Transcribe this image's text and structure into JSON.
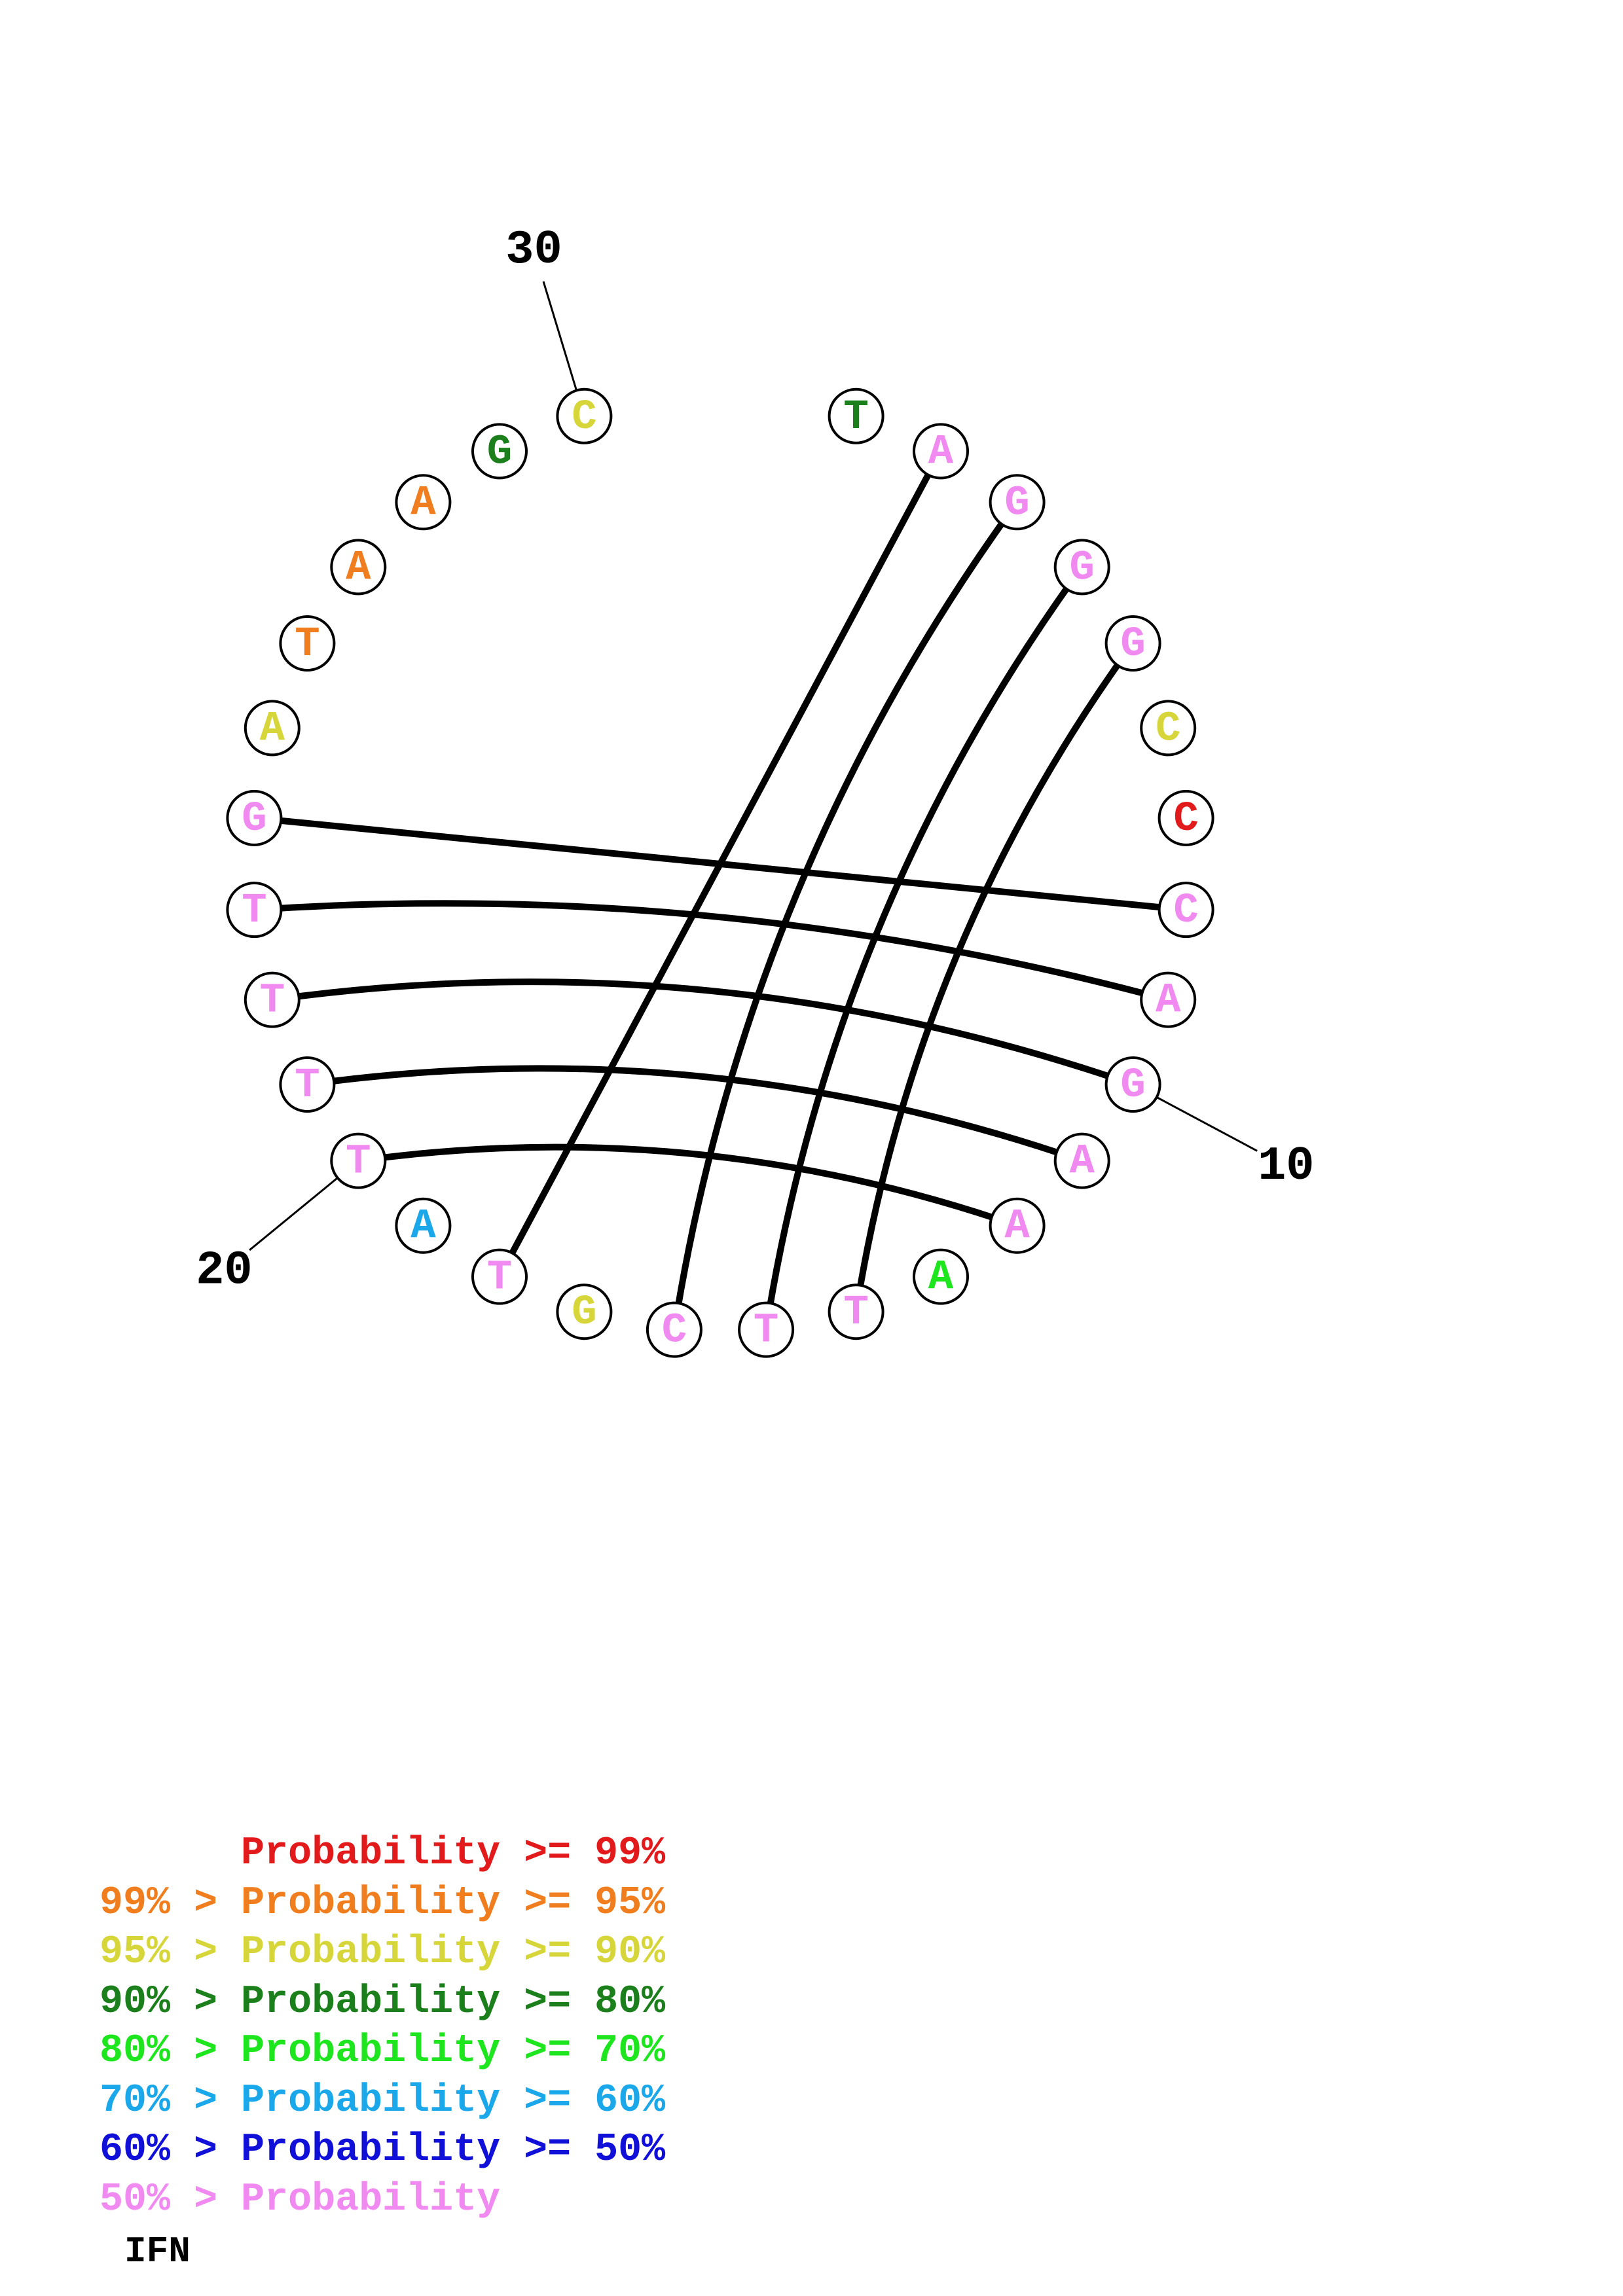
{
  "sequence_name": "IFN",
  "colors": {
    "p99": "#e31a1c",
    "p95": "#f07e1e",
    "p90": "#d6d63a",
    "p80": "#1b7f1b",
    "p70": "#1ee61e",
    "p60": "#1aa8ea",
    "p50": "#1010d8",
    "low": "#f08af0"
  },
  "nucleotides": [
    {
      "i": 1,
      "base": "T",
      "prob": "p80"
    },
    {
      "i": 2,
      "base": "A",
      "prob": "low"
    },
    {
      "i": 3,
      "base": "G",
      "prob": "low"
    },
    {
      "i": 4,
      "base": "G",
      "prob": "low"
    },
    {
      "i": 5,
      "base": "G",
      "prob": "low"
    },
    {
      "i": 6,
      "base": "C",
      "prob": "p90"
    },
    {
      "i": 7,
      "base": "C",
      "prob": "p99"
    },
    {
      "i": 8,
      "base": "C",
      "prob": "low"
    },
    {
      "i": 9,
      "base": "A",
      "prob": "low"
    },
    {
      "i": 10,
      "base": "G",
      "prob": "low"
    },
    {
      "i": 11,
      "base": "A",
      "prob": "low"
    },
    {
      "i": 12,
      "base": "A",
      "prob": "low"
    },
    {
      "i": 13,
      "base": "A",
      "prob": "p70"
    },
    {
      "i": 14,
      "base": "T",
      "prob": "low"
    },
    {
      "i": 15,
      "base": "T",
      "prob": "low"
    },
    {
      "i": 16,
      "base": "C",
      "prob": "low"
    },
    {
      "i": 17,
      "base": "G",
      "prob": "p90"
    },
    {
      "i": 18,
      "base": "T",
      "prob": "low"
    },
    {
      "i": 19,
      "base": "A",
      "prob": "p60"
    },
    {
      "i": 20,
      "base": "T",
      "prob": "low"
    },
    {
      "i": 21,
      "base": "T",
      "prob": "low"
    },
    {
      "i": 22,
      "base": "T",
      "prob": "low"
    },
    {
      "i": 23,
      "base": "T",
      "prob": "low"
    },
    {
      "i": 24,
      "base": "G",
      "prob": "low"
    },
    {
      "i": 25,
      "base": "A",
      "prob": "p90"
    },
    {
      "i": 26,
      "base": "T",
      "prob": "p95"
    },
    {
      "i": 27,
      "base": "A",
      "prob": "p95"
    },
    {
      "i": 28,
      "base": "A",
      "prob": "p95"
    },
    {
      "i": 29,
      "base": "G",
      "prob": "p80"
    },
    {
      "i": 30,
      "base": "C",
      "prob": "p90"
    }
  ],
  "pairs": [
    [
      2,
      18
    ],
    [
      3,
      16
    ],
    [
      4,
      15
    ],
    [
      5,
      14
    ],
    [
      8,
      24
    ],
    [
      9,
      23
    ],
    [
      10,
      22
    ],
    [
      11,
      21
    ],
    [
      12,
      20
    ]
  ],
  "position_labels": [
    {
      "i": 10,
      "text": "10"
    },
    {
      "i": 20,
      "text": "20"
    },
    {
      "i": 30,
      "text": "30"
    }
  ],
  "legend": [
    {
      "prefix": "",
      "label": "Probability >= 99%",
      "color": "p99"
    },
    {
      "prefix": "99% > ",
      "label": "Probability >= 95%",
      "color": "p95"
    },
    {
      "prefix": "95% > ",
      "label": "Probability >= 90%",
      "color": "p90"
    },
    {
      "prefix": "90% > ",
      "label": "Probability >= 80%",
      "color": "p80"
    },
    {
      "prefix": "80% > ",
      "label": "Probability >= 70%",
      "color": "p70"
    },
    {
      "prefix": "70% > ",
      "label": "Probability >= 60%",
      "color": "p60"
    },
    {
      "prefix": "60% > ",
      "label": "Probability >= 50%",
      "color": "p50"
    },
    {
      "prefix": "50% > ",
      "label": "Probability",
      "color": "low"
    }
  ]
}
